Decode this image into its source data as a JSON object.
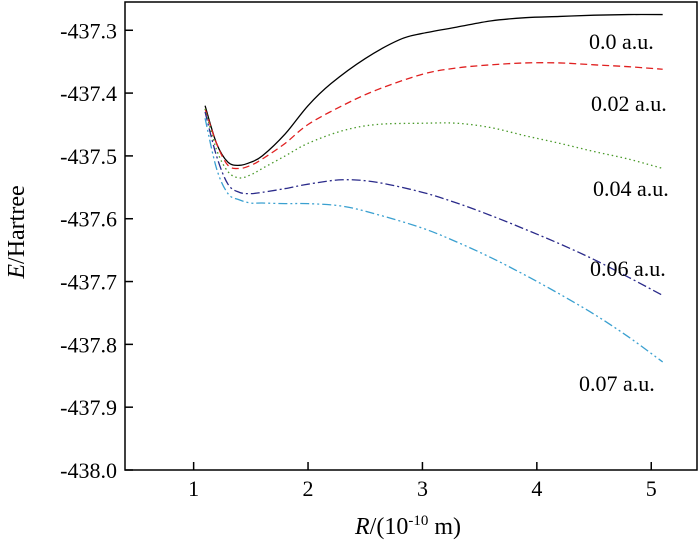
{
  "chart_data": {
    "type": "line",
    "xlabel_italic": "R",
    "xlabel_rest": "/(10",
    "xlabel_sup": "-10",
    "xlabel_unit": " m)",
    "ylabel_italic": "E",
    "ylabel_rest": "/Hartree",
    "xlim": [
      0.4,
      5.4
    ],
    "ylim": [
      -438.0,
      -437.255
    ],
    "xticks": [
      1,
      2,
      3,
      4,
      5
    ],
    "xtick_labels": [
      "1",
      "2",
      "3",
      "4",
      "5"
    ],
    "yticks": [
      -437.3,
      -437.4,
      -437.5,
      -437.6,
      -437.7,
      -437.8,
      -437.9,
      -438.0
    ],
    "ytick_labels": [
      "-437.3",
      "-437.4",
      "-437.5",
      "-437.6",
      "-437.7",
      "-437.8",
      "-437.9",
      "-438.0"
    ],
    "grid": false,
    "series": [
      {
        "name": "0.0 a.u.",
        "color": "#000000",
        "dash": "solid",
        "x": [
          1.1,
          1.2,
          1.3,
          1.4,
          1.5,
          1.6,
          1.8,
          2.0,
          2.2,
          2.5,
          2.8,
          3.0,
          3.3,
          3.6,
          3.9,
          4.2,
          4.5,
          4.8,
          5.1
        ],
        "y": [
          -437.42,
          -437.48,
          -437.51,
          -437.515,
          -437.51,
          -437.5,
          -437.465,
          -437.42,
          -437.385,
          -437.345,
          -437.315,
          -437.305,
          -437.295,
          -437.285,
          -437.28,
          -437.278,
          -437.276,
          -437.275,
          -437.275
        ]
      },
      {
        "name": "0.02 a.u.",
        "color": "#e02020",
        "dash": "dashed",
        "x": [
          1.1,
          1.2,
          1.3,
          1.4,
          1.5,
          1.6,
          1.8,
          2.0,
          2.3,
          2.6,
          3.0,
          3.3,
          3.6,
          3.9,
          4.2,
          4.5,
          4.8,
          5.1
        ],
        "y": [
          -437.425,
          -437.48,
          -437.515,
          -437.52,
          -437.515,
          -437.505,
          -437.48,
          -437.45,
          -437.42,
          -437.395,
          -437.37,
          -437.36,
          -437.355,
          -437.352,
          -437.352,
          -437.355,
          -437.358,
          -437.362
        ]
      },
      {
        "name": "0.04 a.u.",
        "color": "#4a9a2a",
        "dash": "dotted",
        "x": [
          1.1,
          1.2,
          1.3,
          1.4,
          1.5,
          1.6,
          1.8,
          2.0,
          2.3,
          2.6,
          3.0,
          3.3,
          3.6,
          3.9,
          4.2,
          4.5,
          4.8,
          5.1
        ],
        "y": [
          -437.425,
          -437.49,
          -437.525,
          -437.535,
          -437.53,
          -437.52,
          -437.5,
          -437.48,
          -437.46,
          -437.45,
          -437.448,
          -437.448,
          -437.455,
          -437.468,
          -437.48,
          -437.493,
          -437.505,
          -437.52
        ]
      },
      {
        "name": "0.06 a.u.",
        "color": "#2a2a8a",
        "dash": "dashdot",
        "x": [
          1.1,
          1.2,
          1.3,
          1.4,
          1.5,
          1.6,
          1.8,
          2.0,
          2.3,
          2.6,
          3.0,
          3.3,
          3.6,
          3.9,
          4.2,
          4.5,
          4.8,
          5.1
        ],
        "y": [
          -437.43,
          -437.5,
          -437.545,
          -437.558,
          -437.56,
          -437.558,
          -437.552,
          -437.545,
          -437.538,
          -437.542,
          -437.558,
          -437.575,
          -437.595,
          -437.617,
          -437.64,
          -437.665,
          -437.693,
          -437.722
        ]
      },
      {
        "name": "0.07 a.u.",
        "color": "#3aa0d0",
        "dash": "dashdotdot",
        "x": [
          1.1,
          1.2,
          1.3,
          1.4,
          1.5,
          1.6,
          1.8,
          2.0,
          2.3,
          2.6,
          3.0,
          3.3,
          3.6,
          3.9,
          4.2,
          4.5,
          4.8,
          5.1
        ],
        "y": [
          -437.44,
          -437.52,
          -437.56,
          -437.57,
          -437.575,
          -437.575,
          -437.576,
          -437.576,
          -437.58,
          -437.593,
          -437.615,
          -437.637,
          -437.662,
          -437.69,
          -437.72,
          -437.752,
          -437.788,
          -437.828
        ]
      }
    ]
  }
}
